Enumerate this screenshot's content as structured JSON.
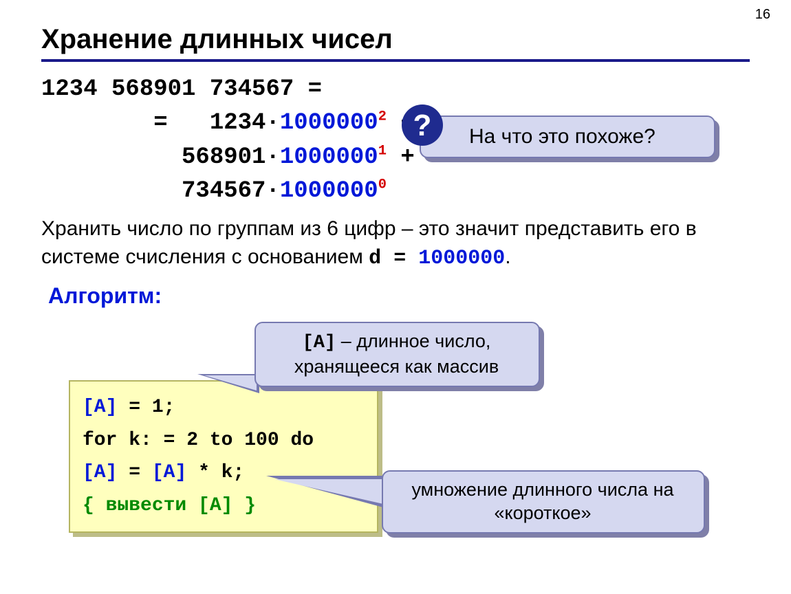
{
  "pageNumber": "16",
  "title": "Хранение длинных чисел",
  "math": {
    "line1_a": "1234 568901 734567 =",
    "line2_pre": "        =   1234",
    "line2_dot": "·",
    "line2_base": "1000000",
    "line2_exp": "2",
    "line2_post": " +",
    "line3_pre": "          568901",
    "line3_dot": "·",
    "line3_base": "1000000",
    "line3_exp": "1",
    "line3_post": " +",
    "line4_pre": "          734567",
    "line4_dot": "·",
    "line4_base": "1000000",
    "line4_exp": "0"
  },
  "q_callout": {
    "badge": "?",
    "text": "На что это похоже?"
  },
  "body": {
    "p1_a": "Хранить число по группам из 6 цифр – это значит представить его в системе счисления с основанием ",
    "d_label": "d",
    "eq": " = ",
    "d_value": "1000000",
    "period": "."
  },
  "algo_label": "Алгоритм:",
  "code": {
    "l1_a": "[A]",
    "l1_b": " = 1;",
    "l2": "for k: = 2 to 100 do",
    "l3_a": "   [A]",
    "l3_b": " = ",
    "l3_c": "[A]",
    "l3_d": " * k;",
    "l4": "{ вывести [A] }"
  },
  "callout_a": {
    "code": "[A]",
    "rest": " – длинное число, хранящееся как массив"
  },
  "callout_b": "умножение длинного числа на «короткое»",
  "colors": {
    "accent": "#1a1a8a",
    "blue": "#0018d8",
    "red": "#d40000",
    "green": "#008a00",
    "calloutBg": "#d5d8f0",
    "calloutBorder": "#7679b0",
    "codeBg": "#ffffbe"
  }
}
